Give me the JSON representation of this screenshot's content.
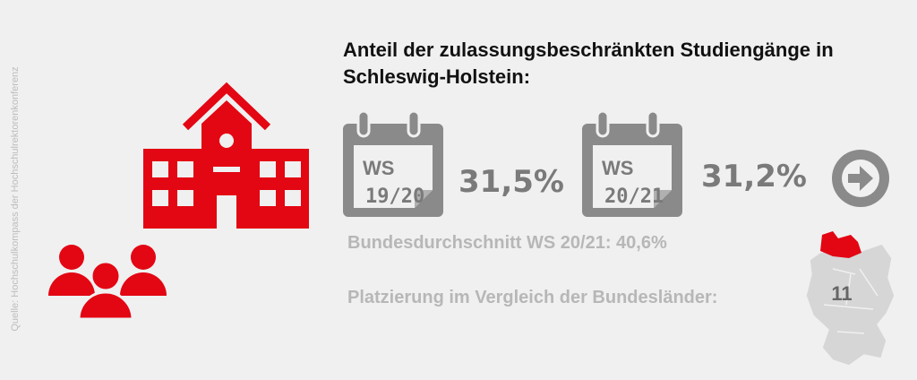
{
  "source": "Quelle: Hochschulkompass der Hochschulrektorenkonferenz",
  "title": {
    "lines": [
      "Anteil der zulassungsbeschränkten Studiengänge in",
      "Schleswig-Holstein:"
    ]
  },
  "semesters": [
    {
      "label": "WS",
      "period": "19/20",
      "share": "31,5%"
    },
    {
      "label": "WS",
      "period": "20/21",
      "share": "31,2%"
    }
  ],
  "national_average": "Bundesdurchschnitt WS 20/21: 40,6%",
  "ranking": {
    "label": "Platzierung im Vergleich der Bundesländer:",
    "rank": "11"
  }
}
